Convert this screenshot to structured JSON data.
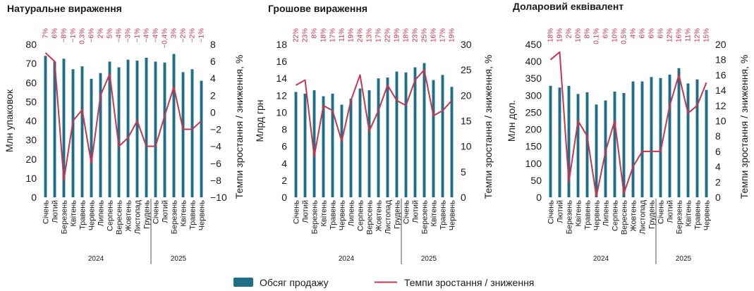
{
  "colors": {
    "bar": "#1e6f87",
    "line": "#c6364f",
    "pct_text": "#c0344d"
  },
  "legend": {
    "bar_label": "Обсяг продажу",
    "line_label": "Темпи зростання / зниження"
  },
  "chart_data": [
    {
      "type": "bar+line",
      "title": "Натуральне вираження",
      "ylabel": "Млн упаковок",
      "y2label": "Темпи зростання / зниження, %",
      "ylim": [
        0,
        80
      ],
      "yticks": [
        "0",
        "10",
        "20",
        "30",
        "40",
        "50",
        "60",
        "70",
        "80"
      ],
      "y2lim": [
        -10,
        8
      ],
      "y2ticks": [
        "−10",
        "−8",
        "−6",
        "−4",
        "−2",
        "0",
        "2",
        "4",
        "6",
        "8"
      ],
      "categories": [
        "Січень",
        "Лютий",
        "Березень",
        "Квітень",
        "Травень",
        "Червень",
        "Липень",
        "Серпень",
        "Вересень",
        "Жовтень",
        "Листопад",
        "Грудень",
        "Січень",
        "Лютий",
        "Березень",
        "Квітень",
        "Травень",
        "Червень"
      ],
      "years": [
        {
          "label": "2024",
          "count": 12
        },
        {
          "label": "2025",
          "count": 6
        }
      ],
      "bars": [
        74,
        71,
        72.5,
        67,
        68.5,
        62,
        65,
        71,
        68,
        72,
        71.5,
        73,
        71,
        70.5,
        75,
        65.5,
        67,
        61
      ],
      "line": [
        7,
        6,
        -8,
        -1,
        0.3,
        -6,
        2,
        4.5,
        -4,
        -3,
        -1,
        -4,
        -4,
        -0.4,
        3,
        -2,
        -2,
        -1
      ],
      "pct_labels": [
        "7%",
        "6%",
        "−8%",
        "−1%",
        "0,3%",
        "−6%",
        "2%",
        "5%",
        "−4%",
        "−3%",
        "−1%",
        "−4%",
        "−4%",
        "−0,4%",
        "3%",
        "−2%",
        "−2%",
        "−1%"
      ]
    },
    {
      "type": "bar+line",
      "title": "Грошове вираження",
      "ylabel": "Млрд грн",
      "y2label": "Темпи зростання / зниження, %",
      "ylim": [
        0,
        18
      ],
      "yticks": [
        "0",
        "2",
        "4",
        "6",
        "8",
        "10",
        "12",
        "14",
        "16",
        "18"
      ],
      "y2lim": [
        0,
        30
      ],
      "y2ticks": [
        "0",
        "5",
        "10",
        "15",
        "20",
        "25",
        "30"
      ],
      "categories": [
        "Січень",
        "Лютий",
        "Березень",
        "Квітень",
        "Травень",
        "Червень",
        "Липень",
        "Серпень",
        "Вересень",
        "Жовтень",
        "Листопад",
        "Грудень",
        "Січень",
        "Лютий",
        "Березень",
        "Квітень",
        "Травень",
        "Червень"
      ],
      "years": [
        {
          "label": "2024",
          "count": 12
        },
        {
          "label": "2025",
          "count": 6
        }
      ],
      "bars": [
        12.4,
        12.2,
        12.6,
        11.9,
        12.2,
        10.9,
        11.6,
        12.8,
        12.6,
        14,
        14.1,
        14.8,
        14.7,
        15.3,
        15.8,
        13.8,
        14.4,
        13
      ],
      "line": [
        22,
        23,
        8,
        18,
        17,
        11,
        19,
        24,
        13,
        17,
        22,
        19,
        18,
        23,
        25,
        16,
        17,
        19
      ],
      "pct_labels": [
        "22%",
        "23%",
        "8%",
        "18%",
        "17%",
        "11%",
        "19%",
        "24%",
        "13%",
        "17%",
        "22%",
        "19%",
        "18%",
        "23%",
        "25%",
        "16%",
        "17%",
        "19%"
      ]
    },
    {
      "type": "bar+line",
      "title": "Доларовий еквівалент",
      "ylabel": "Млн дол.",
      "y2label": "Темпи зростання / зниження, %",
      "ylim": [
        0,
        450
      ],
      "yticks": [
        "0",
        "50",
        "100",
        "150",
        "200",
        "250",
        "300",
        "350",
        "400",
        "450"
      ],
      "y2lim": [
        0,
        20
      ],
      "y2ticks": [
        "0",
        "2",
        "4",
        "6",
        "8",
        "10",
        "12",
        "14",
        "16",
        "18",
        "20"
      ],
      "categories": [
        "Січень",
        "Лютий",
        "Березень",
        "Квітень",
        "Травень",
        "Червень",
        "Липень",
        "Серпень",
        "Вересень",
        "Жовтень",
        "Листопад",
        "Грудень",
        "Січень",
        "Лютий",
        "Березень",
        "Квітень",
        "Травень",
        "Червень"
      ],
      "years": [
        {
          "label": "2024",
          "count": 12
        },
        {
          "label": "2025",
          "count": 6
        }
      ],
      "bars": [
        328,
        323,
        328,
        304,
        309,
        273,
        285,
        311,
        307,
        341,
        341,
        354,
        351,
        361,
        380,
        335,
        347,
        316
      ],
      "line": [
        18,
        19,
        2,
        10,
        8,
        0.1,
        6,
        10,
        0.5,
        4,
        6,
        6,
        6,
        12,
        16,
        11,
        12,
        15
      ],
      "pct_labels": [
        "18%",
        "19%",
        "2%",
        "10%",
        "8%",
        "0,1%",
        "6%",
        "10%",
        "0,5%",
        "4%",
        "6%",
        "6%",
        "6%",
        "12%",
        "16%",
        "11%",
        "12%",
        "15%"
      ]
    }
  ]
}
